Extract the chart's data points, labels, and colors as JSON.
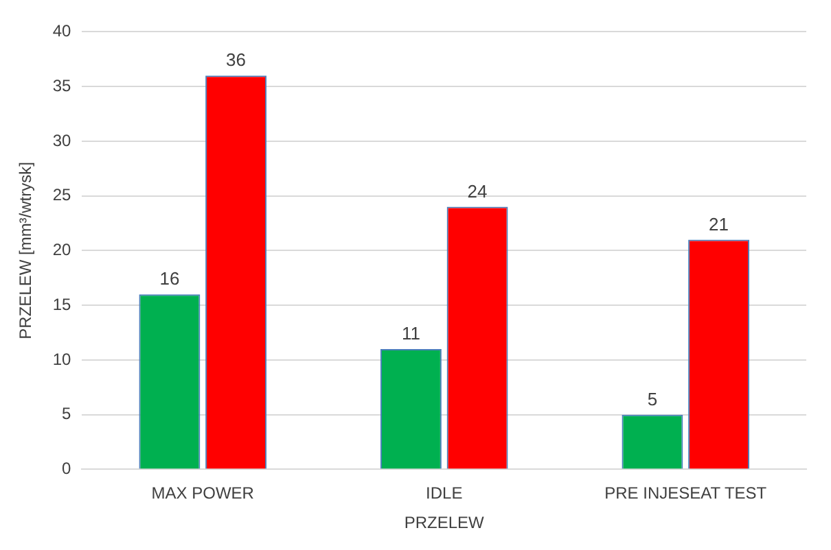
{
  "chart_data": {
    "type": "bar",
    "xlabel": "PRZELEW",
    "ylabel": "PRZELEW [mm³/wtrysk]",
    "categories": [
      "MAX POWER",
      "IDLE",
      "PRE INJESEAT TEST"
    ],
    "series": [
      {
        "color": "#00b050",
        "values": [
          16,
          11,
          5
        ]
      },
      {
        "color": "#ff0000",
        "values": [
          36,
          24,
          21
        ]
      }
    ],
    "ylim": [
      0,
      40
    ],
    "yticks": [
      0,
      5,
      10,
      15,
      20,
      25,
      30,
      35,
      40
    ],
    "grid": "y",
    "data_labels": true,
    "legend": false
  }
}
